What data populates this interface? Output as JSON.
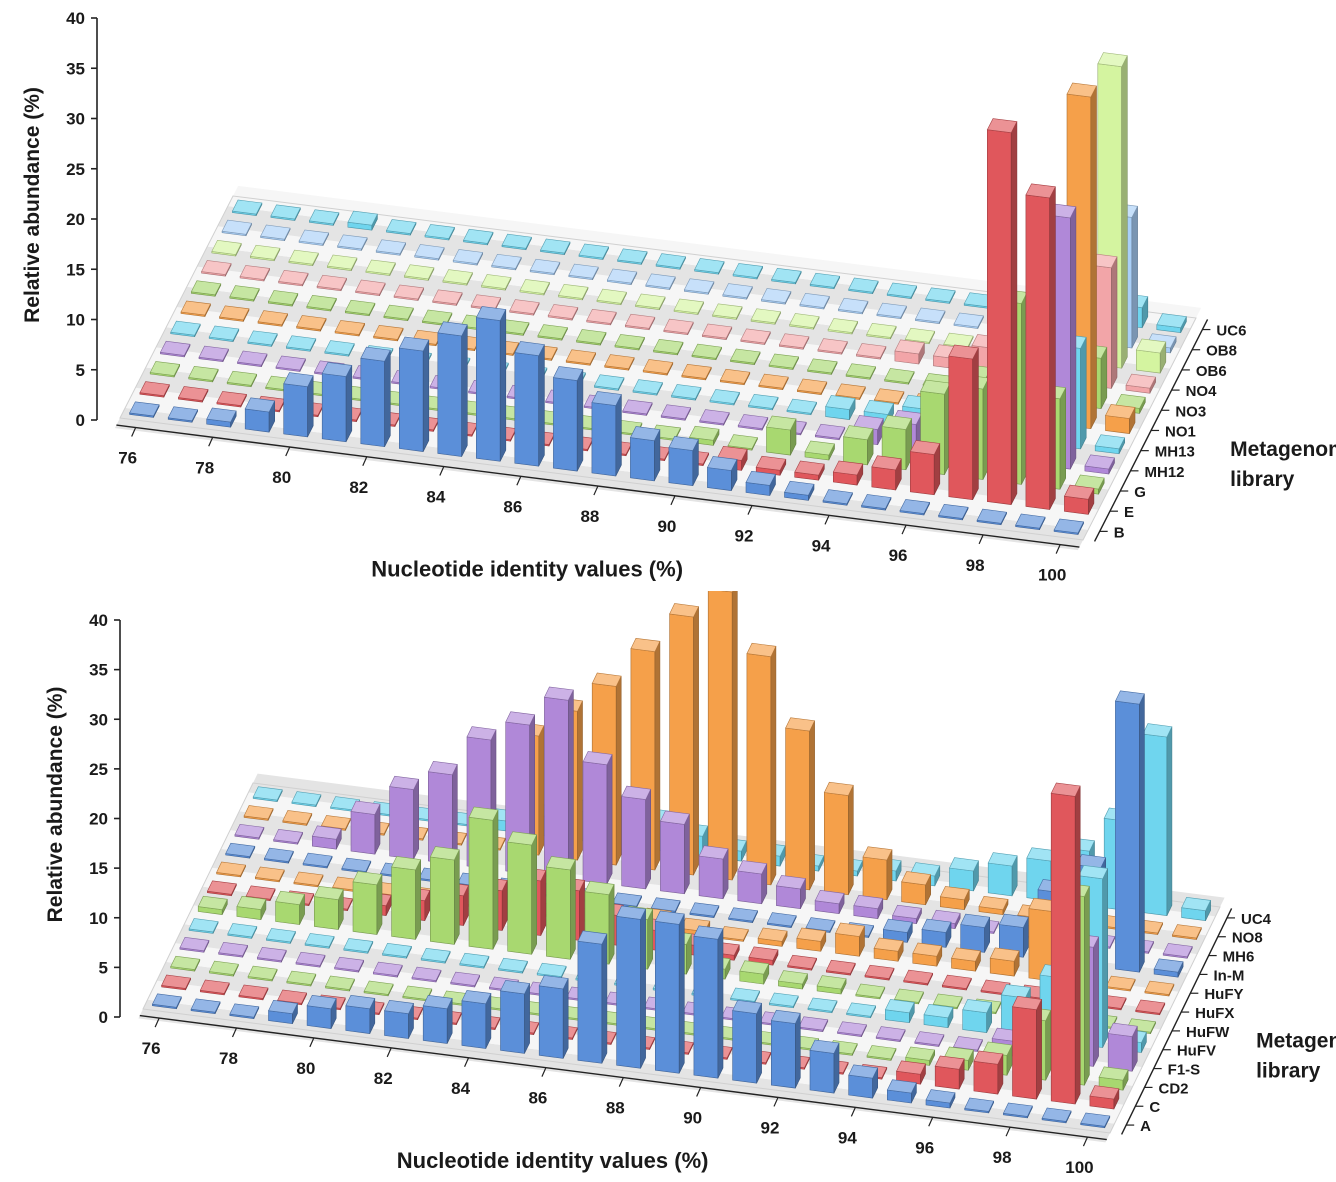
{
  "colors": {
    "blue": "#5b8fd9",
    "red": "#e0575c",
    "green": "#a8d870",
    "purple": "#b088d8",
    "cyan": "#6fd5ee",
    "orange": "#f5a04a",
    "pink": "#f2a5a8",
    "lightgreen": "#d4f4a0",
    "lightblue": "#a9cff7"
  },
  "chart_data": [
    {
      "type": "bar",
      "style": "3d-bar",
      "xlabel": "Nucleotide identity values (%)",
      "ylabel": "Relative abundance (%)",
      "zlabel": "Metagenome library",
      "ylim": [
        0,
        40
      ],
      "yticks": [
        "0",
        "5",
        "10",
        "15",
        "20",
        "25",
        "30",
        "35",
        "40"
      ],
      "x": [
        76,
        77,
        78,
        79,
        80,
        81,
        82,
        83,
        84,
        85,
        86,
        87,
        88,
        89,
        90,
        91,
        92,
        93,
        94,
        95,
        96,
        97,
        98,
        99,
        100
      ],
      "xtick_labels": [
        "76",
        "78",
        "80",
        "82",
        "84",
        "86",
        "88",
        "90",
        "92",
        "94",
        "96",
        "98",
        "100"
      ],
      "series": [
        {
          "name": "B",
          "color": "blue",
          "values": [
            0,
            0,
            0.5,
            2,
            5,
            6.5,
            8.5,
            10,
            12,
            14,
            11,
            9,
            7,
            4,
            3.5,
            2,
            1,
            0.5,
            0,
            0,
            0,
            0,
            0,
            0,
            0
          ]
        },
        {
          "name": "E",
          "color": "red",
          "values": [
            0,
            0,
            0,
            0,
            0,
            0,
            0,
            0,
            0,
            0,
            0,
            0,
            0,
            0,
            0,
            1,
            0.5,
            0.5,
            1,
            2,
            4,
            14,
            37,
            31,
            1.5
          ]
        },
        {
          "name": "G",
          "color": "green",
          "values": [
            0,
            0,
            0,
            0,
            0,
            0,
            0,
            0,
            0,
            0,
            0,
            0,
            0,
            0,
            0.5,
            0,
            2.5,
            0.5,
            2.5,
            4,
            8,
            9,
            18,
            9,
            0.5
          ]
        },
        {
          "name": "MH12",
          "color": "purple",
          "values": [
            0,
            0,
            0,
            0,
            0,
            0,
            0,
            0,
            0,
            0,
            0,
            0,
            0,
            0,
            0,
            0,
            0,
            0,
            1.5,
            2.5,
            4,
            6,
            12,
            25,
            0.5
          ]
        },
        {
          "name": "MH13",
          "color": "cyan",
          "values": [
            0,
            0,
            0,
            0,
            0,
            0,
            0,
            0,
            0,
            0,
            0,
            0,
            0,
            0,
            0,
            0,
            0,
            1,
            1,
            2,
            2.5,
            3.5,
            7,
            10,
            0.5
          ]
        },
        {
          "name": "NO1",
          "color": "orange",
          "values": [
            0,
            0,
            0,
            0,
            0,
            0,
            0,
            0,
            0,
            0,
            0,
            0,
            0,
            0,
            0,
            0,
            0,
            0,
            0,
            0,
            1.5,
            2.5,
            13,
            33,
            1.5
          ]
        },
        {
          "name": "NO3",
          "color": "green",
          "values": [
            0,
            0,
            0,
            0,
            0,
            0,
            0,
            0,
            0,
            0,
            0,
            0,
            0,
            0,
            0,
            0,
            0,
            0,
            0,
            0,
            1.5,
            2,
            11,
            5,
            0.5
          ]
        },
        {
          "name": "NO4",
          "color": "pink",
          "values": [
            0,
            0,
            0,
            0,
            0,
            0,
            0,
            0,
            0,
            0,
            0,
            0,
            0,
            0,
            0,
            0,
            0,
            0,
            1,
            1,
            2.5,
            3,
            5,
            12,
            0.5
          ]
        },
        {
          "name": "OB6",
          "color": "lightgreen",
          "values": [
            0,
            0,
            0,
            0,
            0,
            0,
            0,
            0,
            0,
            0,
            0,
            0,
            0,
            0,
            0,
            0,
            0,
            0,
            0,
            0,
            0,
            1,
            3,
            30,
            2
          ]
        },
        {
          "name": "OB8",
          "color": "lightblue",
          "values": [
            0,
            0,
            0,
            0,
            0,
            0,
            0,
            0,
            0,
            0,
            0,
            0,
            0,
            0,
            0,
            0,
            0,
            0,
            0,
            0,
            0,
            1,
            2,
            13,
            0.5
          ]
        },
        {
          "name": "UC6",
          "color": "cyan",
          "values": [
            0,
            0,
            0,
            0.5,
            0,
            0,
            0,
            0,
            0,
            0,
            0,
            0,
            0,
            0,
            0,
            0,
            0,
            0,
            0,
            0,
            0,
            0,
            1,
            2,
            0.5
          ]
        }
      ]
    },
    {
      "type": "bar",
      "style": "3d-bar",
      "xlabel": "Nucleotide identity values (%)",
      "ylabel": "Relative abundance (%)",
      "zlabel": "Metagenome library",
      "ylim": [
        0,
        40
      ],
      "yticks": [
        "0",
        "5",
        "10",
        "15",
        "20",
        "25",
        "30",
        "35",
        "40"
      ],
      "x": [
        76,
        77,
        78,
        79,
        80,
        81,
        82,
        83,
        84,
        85,
        86,
        87,
        88,
        89,
        90,
        91,
        92,
        93,
        94,
        95,
        96,
        97,
        98,
        99,
        100
      ],
      "xtick_labels": [
        "76",
        "78",
        "80",
        "82",
        "84",
        "86",
        "88",
        "90",
        "92",
        "94",
        "96",
        "98",
        "100"
      ],
      "series": [
        {
          "name": "A",
          "color": "blue",
          "values": [
            0,
            0,
            0,
            1,
            2,
            2.5,
            2.5,
            3.5,
            4.5,
            6,
            7,
            12,
            15,
            15,
            14,
            7,
            6.5,
            4,
            2,
            1,
            0.5,
            0,
            0,
            0,
            0
          ]
        },
        {
          "name": "C",
          "color": "red",
          "values": [
            0,
            0,
            0,
            0,
            0,
            0,
            0,
            0,
            0,
            0,
            0,
            0,
            0,
            0,
            0,
            0,
            0,
            0,
            0,
            1,
            2,
            3,
            9,
            31,
            1
          ]
        },
        {
          "name": "CD2",
          "color": "green",
          "values": [
            0,
            0,
            0,
            0,
            0,
            0,
            0,
            0,
            0,
            0,
            0,
            0,
            0,
            0,
            0,
            0,
            0,
            0,
            0,
            0.5,
            1,
            2,
            6,
            19,
            1
          ]
        },
        {
          "name": "F1-S",
          "color": "purple",
          "values": [
            0,
            0,
            0,
            0,
            0,
            0,
            0,
            0,
            0,
            0,
            0,
            0,
            0,
            0,
            0,
            0,
            0,
            0,
            0,
            0,
            0,
            1.5,
            3,
            12,
            3.5
          ]
        },
        {
          "name": "HuFV",
          "color": "cyan",
          "values": [
            0,
            0,
            0,
            0,
            0,
            0,
            0,
            0,
            0,
            0,
            0,
            0,
            0,
            0,
            0,
            0,
            0,
            0,
            1,
            1,
            2,
            4,
            6.5,
            17,
            1
          ]
        },
        {
          "name": "HuFW",
          "color": "green",
          "values": [
            0.5,
            1,
            2,
            3,
            5,
            7,
            8.5,
            13,
            11,
            9,
            7,
            5,
            3,
            1,
            1,
            0.5,
            0.5,
            0,
            0,
            0,
            0,
            0,
            0,
            0,
            0
          ]
        },
        {
          "name": "HuFX",
          "color": "red",
          "values": [
            0,
            0,
            0,
            0,
            1,
            2,
            3,
            4,
            5.5,
            5,
            3,
            2,
            1,
            0.5,
            0.5,
            0,
            0,
            0,
            0,
            0,
            0,
            0,
            0,
            0,
            0
          ]
        },
        {
          "name": "HuFY",
          "color": "orange",
          "values": [
            0,
            0,
            0,
            0,
            0,
            0,
            0,
            0,
            0,
            0,
            0,
            1,
            0.5,
            0,
            0.5,
            1,
            2,
            1,
            1,
            1,
            1.5,
            7,
            0,
            0,
            0
          ]
        },
        {
          "name": "In-M",
          "color": "blue",
          "values": [
            0,
            0,
            0,
            0,
            0,
            0,
            0,
            0,
            0,
            0,
            0,
            0,
            0,
            0,
            0,
            0,
            0,
            1,
            1.5,
            2.5,
            3,
            7,
            10,
            27,
            0.5
          ]
        },
        {
          "name": "MH6",
          "color": "purple",
          "values": [
            0,
            0,
            1,
            4,
            7,
            9,
            13,
            15,
            18,
            12,
            9,
            7,
            4,
            3,
            2,
            1,
            1,
            0.5,
            0.5,
            0,
            0,
            0,
            0,
            0,
            0
          ]
        },
        {
          "name": "NO8",
          "color": "orange",
          "values": [
            0,
            0,
            0,
            0,
            0,
            0,
            0,
            12,
            15,
            18,
            22,
            26,
            29,
            23,
            16,
            10,
            4,
            2,
            1,
            0.5,
            0,
            0,
            0,
            0,
            0
          ]
        },
        {
          "name": "UC4",
          "color": "cyan",
          "values": [
            0,
            0,
            0,
            0,
            0,
            0,
            1,
            2,
            3,
            4,
            3,
            2,
            1,
            1,
            0.5,
            0.5,
            1,
            1,
            2,
            3,
            4,
            5.5,
            9,
            18,
            1
          ]
        }
      ]
    }
  ]
}
